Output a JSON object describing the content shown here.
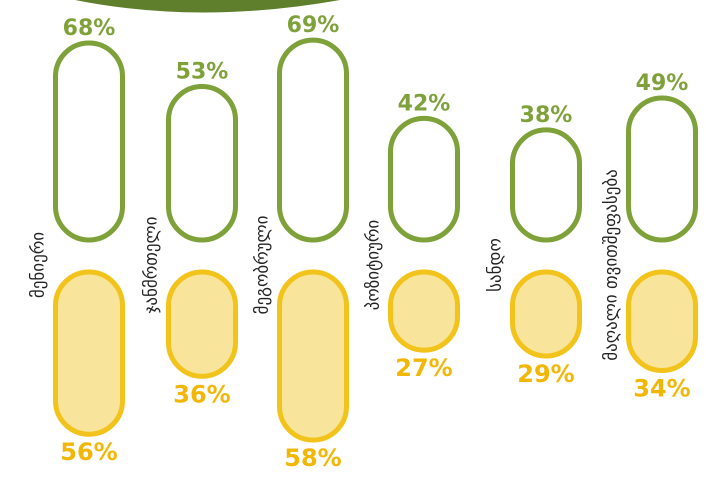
{
  "chart_data": {
    "type": "bar",
    "categories": [
      "მენიერი",
      "ჯანმრთელი",
      "მეგობრული",
      "პოზიტიური",
      "სანდო",
      "მაღალი თვითშეფასება"
    ],
    "series": [
      {
        "values": [
          68,
          53,
          69,
          42,
          38,
          49
        ]
      },
      {
        "values": [
          56,
          36,
          58,
          27,
          29,
          34
        ]
      }
    ],
    "value_suffix": "%",
    "colors": {
      "series_0_stroke": "#7ea13a",
      "series_0_fill": "#ffffff",
      "series_1_stroke": "#f2c31a",
      "series_1_fill": "#f8e49a",
      "series_0_label": "#7ea13a",
      "series_1_label": "#f2b705",
      "decoration_top": "#5f7f2c"
    },
    "legend": "none",
    "grid": false
  }
}
